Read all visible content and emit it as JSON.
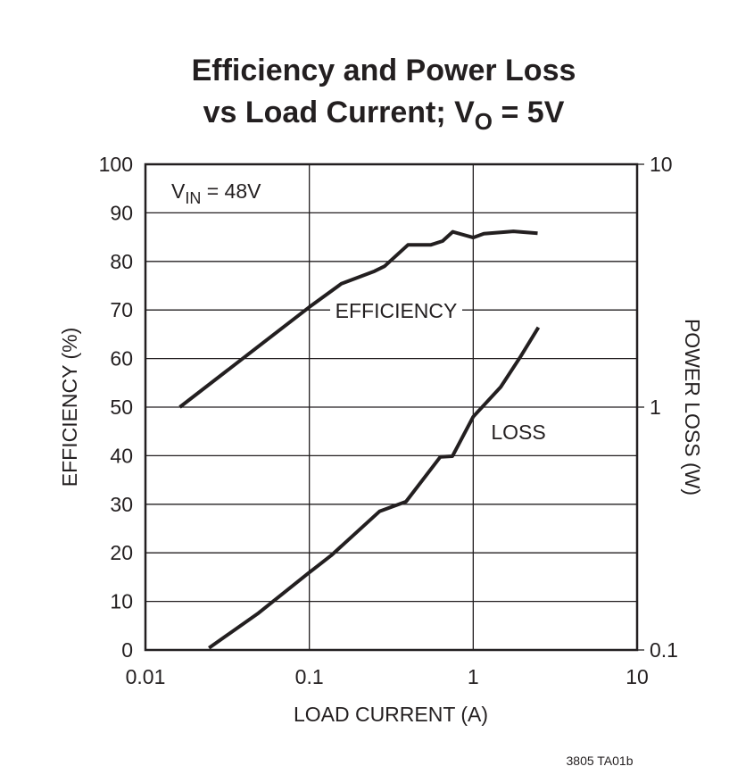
{
  "chart_data": {
    "type": "line",
    "title": {
      "line1": "Efficiency and Power Loss",
      "line2_prefix": "vs Load Current; V",
      "line2_sub": "O",
      "line2_suffix": " = 5V"
    },
    "xlabel": "LOAD CURRENT (A)",
    "ylabel": "EFFICIENCY (%)",
    "y2label": "POWER LOSS (W)",
    "x_scale": "log",
    "xlim": [
      0.01,
      10
    ],
    "x_ticks": [
      "0.01",
      "0.1",
      "1",
      "10"
    ],
    "ylim": [
      0,
      100
    ],
    "y_ticks": [
      "0",
      "10",
      "20",
      "30",
      "40",
      "50",
      "60",
      "70",
      "80",
      "90",
      "100"
    ],
    "y2_scale": "log",
    "y2lim": [
      0.1,
      10
    ],
    "y2_ticks": [
      "0.1",
      "1",
      "10"
    ],
    "grid": true,
    "annotations": {
      "vin_prefix": "V",
      "vin_sub": "IN",
      "vin_suffix": " = 48V",
      "footer": "3805 TA01b"
    },
    "series": [
      {
        "name": "EFFICIENCY",
        "axis": "left",
        "x": [
          0.0162,
          0.1,
          0.157,
          0.25,
          0.288,
          0.4,
          0.55,
          0.65,
          0.75,
          1.0,
          1.16,
          1.76,
          2.47
        ],
        "y": [
          50,
          70.6,
          75.4,
          78,
          79,
          83.4,
          83.4,
          84.2,
          86.1,
          84.9,
          85.7,
          86.2,
          85.8
        ]
      },
      {
        "name": "LOSS",
        "axis": "right",
        "x": [
          0.0244,
          0.049,
          0.0986,
          0.136,
          0.268,
          0.389,
          0.63,
          0.746,
          1.0,
          1.47,
          1.94,
          2.5
        ],
        "y": [
          0.102,
          0.142,
          0.207,
          0.245,
          0.372,
          0.408,
          0.624,
          0.628,
          0.913,
          1.21,
          1.61,
          2.13
        ]
      }
    ],
    "color": "#231f20"
  }
}
